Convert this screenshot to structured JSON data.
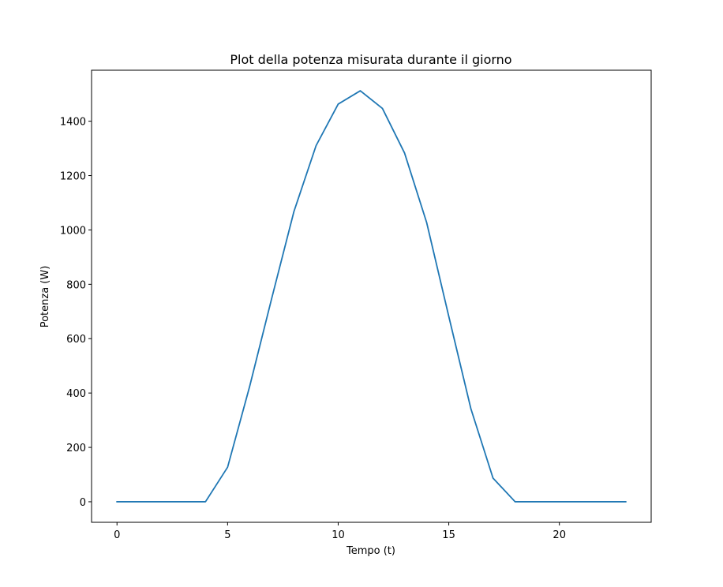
{
  "chart_data": {
    "type": "line",
    "title": "Plot della potenza misurata durante il giorno",
    "xlabel": "Tempo (t)",
    "ylabel": "Potenza (W)",
    "xlim": [
      -1.15,
      24.15
    ],
    "ylim": [
      -75.6,
      1587.6
    ],
    "xticks": [
      0,
      5,
      10,
      15,
      20
    ],
    "yticks": [
      0,
      200,
      400,
      600,
      800,
      1000,
      1200,
      1400
    ],
    "grid": false,
    "legend": "none",
    "series": [
      {
        "color": "#1f77b4",
        "x": [
          0,
          1,
          2,
          3,
          4,
          5,
          6,
          7,
          8,
          9,
          10,
          11,
          12,
          13,
          14,
          15,
          16,
          17,
          18,
          19,
          20,
          21,
          22,
          23
        ],
        "y": [
          0,
          0,
          0,
          0,
          0,
          127,
          425,
          750,
          1068,
          1310,
          1463,
          1512,
          1447,
          1283,
          1027,
          682,
          342,
          87,
          0,
          0,
          0,
          0,
          0,
          0
        ]
      }
    ]
  }
}
